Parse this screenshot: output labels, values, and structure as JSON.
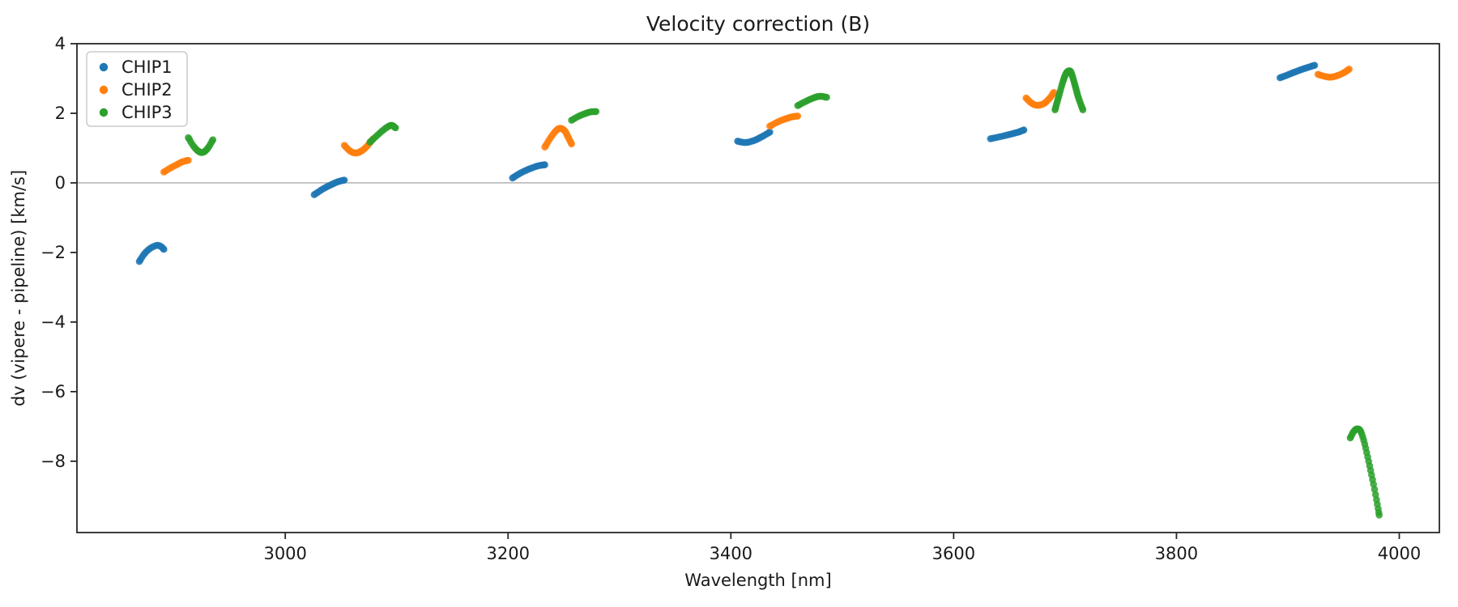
{
  "chart_data": {
    "type": "scatter",
    "title": "Velocity correction (B)",
    "xlabel": "Wavelength [nm]",
    "ylabel": "dv (vipere - pipeline) [km/s]",
    "xlim": [
      2813,
      4036
    ],
    "ylim": [
      -10.05,
      4
    ],
    "xticks": [
      3000,
      3200,
      3400,
      3600,
      3800,
      4000
    ],
    "yticks": [
      4,
      2,
      0,
      -2,
      -4,
      -6,
      -8
    ],
    "grid": false,
    "zero_line": true,
    "zero_line_color": "#999999",
    "legend_position": "upper left",
    "series": [
      {
        "name": "CHIP1",
        "color": "#1f77b4",
        "segments": [
          {
            "points": [
              [
                2869,
                -2.26
              ],
              [
                2873,
                -2.06
              ],
              [
                2878,
                -1.9
              ],
              [
                2884,
                -1.8
              ],
              [
                2888,
                -1.82
              ],
              [
                2891,
                -1.91
              ]
            ]
          },
          {
            "points": [
              [
                3026,
                -0.34
              ],
              [
                3033,
                -0.19
              ],
              [
                3040,
                -0.07
              ],
              [
                3047,
                0.03
              ],
              [
                3053,
                0.08
              ]
            ]
          },
          {
            "points": [
              [
                3204,
                0.14
              ],
              [
                3211,
                0.28
              ],
              [
                3219,
                0.4
              ],
              [
                3227,
                0.49
              ],
              [
                3233,
                0.52
              ]
            ]
          },
          {
            "points": [
              [
                3406,
                1.2
              ],
              [
                3413,
                1.16
              ],
              [
                3421,
                1.22
              ],
              [
                3428,
                1.33
              ],
              [
                3435,
                1.46
              ]
            ]
          },
          {
            "points": [
              [
                3633,
                1.27
              ],
              [
                3642,
                1.33
              ],
              [
                3651,
                1.4
              ],
              [
                3658,
                1.46
              ],
              [
                3663,
                1.52
              ]
            ]
          },
          {
            "points": [
              [
                3893,
                3.02
              ],
              [
                3901,
                3.12
              ],
              [
                3909,
                3.22
              ],
              [
                3917,
                3.31
              ],
              [
                3924,
                3.38
              ]
            ]
          }
        ]
      },
      {
        "name": "CHIP2",
        "color": "#ff7f0e",
        "segments": [
          {
            "points": [
              [
                2891,
                0.31
              ],
              [
                2897,
                0.43
              ],
              [
                2903,
                0.53
              ],
              [
                2908,
                0.61
              ],
              [
                2913,
                0.65
              ]
            ]
          },
          {
            "points": [
              [
                3053,
                1.08
              ],
              [
                3058,
                0.92
              ],
              [
                3063,
                0.86
              ],
              [
                3068,
                0.91
              ],
              [
                3073,
                1.04
              ],
              [
                3079,
                1.27
              ]
            ]
          },
          {
            "points": [
              [
                3233,
                1.03
              ],
              [
                3238,
                1.29
              ],
              [
                3243,
                1.5
              ],
              [
                3247,
                1.57
              ],
              [
                3251,
                1.49
              ],
              [
                3254,
                1.31
              ],
              [
                3257,
                1.12
              ]
            ]
          },
          {
            "points": [
              [
                3435,
                1.63
              ],
              [
                3442,
                1.75
              ],
              [
                3449,
                1.84
              ],
              [
                3455,
                1.9
              ],
              [
                3460,
                1.92
              ]
            ]
          },
          {
            "points": [
              [
                3665,
                2.44
              ],
              [
                3670,
                2.29
              ],
              [
                3675,
                2.23
              ],
              [
                3681,
                2.28
              ],
              [
                3686,
                2.43
              ],
              [
                3690,
                2.6
              ]
            ]
          },
          {
            "points": [
              [
                3927,
                3.12
              ],
              [
                3933,
                3.06
              ],
              [
                3939,
                3.04
              ],
              [
                3945,
                3.09
              ],
              [
                3951,
                3.18
              ],
              [
                3955,
                3.27
              ]
            ]
          }
        ]
      },
      {
        "name": "CHIP3",
        "color": "#2ca02c",
        "segments": [
          {
            "points": [
              [
                2913,
                1.3
              ],
              [
                2918,
                1.04
              ],
              [
                2923,
                0.89
              ],
              [
                2927,
                0.89
              ],
              [
                2931,
                1.02
              ],
              [
                2935,
                1.24
              ]
            ]
          },
          {
            "points": [
              [
                3076,
                1.17
              ],
              [
                3082,
                1.35
              ],
              [
                3088,
                1.52
              ],
              [
                3093,
                1.63
              ],
              [
                3096,
                1.65
              ],
              [
                3099,
                1.58
              ]
            ]
          },
          {
            "points": [
              [
                3257,
                1.8
              ],
              [
                3263,
                1.91
              ],
              [
                3269,
                1.99
              ],
              [
                3274,
                2.04
              ],
              [
                3279,
                2.05
              ]
            ]
          },
          {
            "points": [
              [
                3460,
                2.22
              ],
              [
                3467,
                2.34
              ],
              [
                3474,
                2.44
              ],
              [
                3480,
                2.49
              ],
              [
                3486,
                2.46
              ]
            ]
          },
          {
            "points": [
              [
                3691,
                2.1
              ],
              [
                3694,
                2.45
              ],
              [
                3698,
                2.9
              ],
              [
                3701,
                3.15
              ],
              [
                3704,
                3.22
              ],
              [
                3706,
                3.12
              ],
              [
                3709,
                2.8
              ],
              [
                3712,
                2.45
              ],
              [
                3716,
                2.1
              ]
            ]
          },
          {
            "points": [
              [
                3956,
                -7.33
              ],
              [
                3959,
                -7.15
              ],
              [
                3962,
                -7.07
              ],
              [
                3965,
                -7.12
              ],
              [
                3968,
                -7.38
              ],
              [
                3971,
                -7.78
              ],
              [
                3974,
                -8.22
              ],
              [
                3977,
                -8.68
              ],
              [
                3980,
                -9.18
              ],
              [
                3982,
                -9.55
              ]
            ],
            "n": 32
          }
        ]
      }
    ],
    "legend_entries": [
      {
        "label": "CHIP1",
        "color": "#1f77b4"
      },
      {
        "label": "CHIP2",
        "color": "#ff7f0e"
      },
      {
        "label": "CHIP3",
        "color": "#2ca02c"
      }
    ],
    "spine_color": "#262626"
  }
}
